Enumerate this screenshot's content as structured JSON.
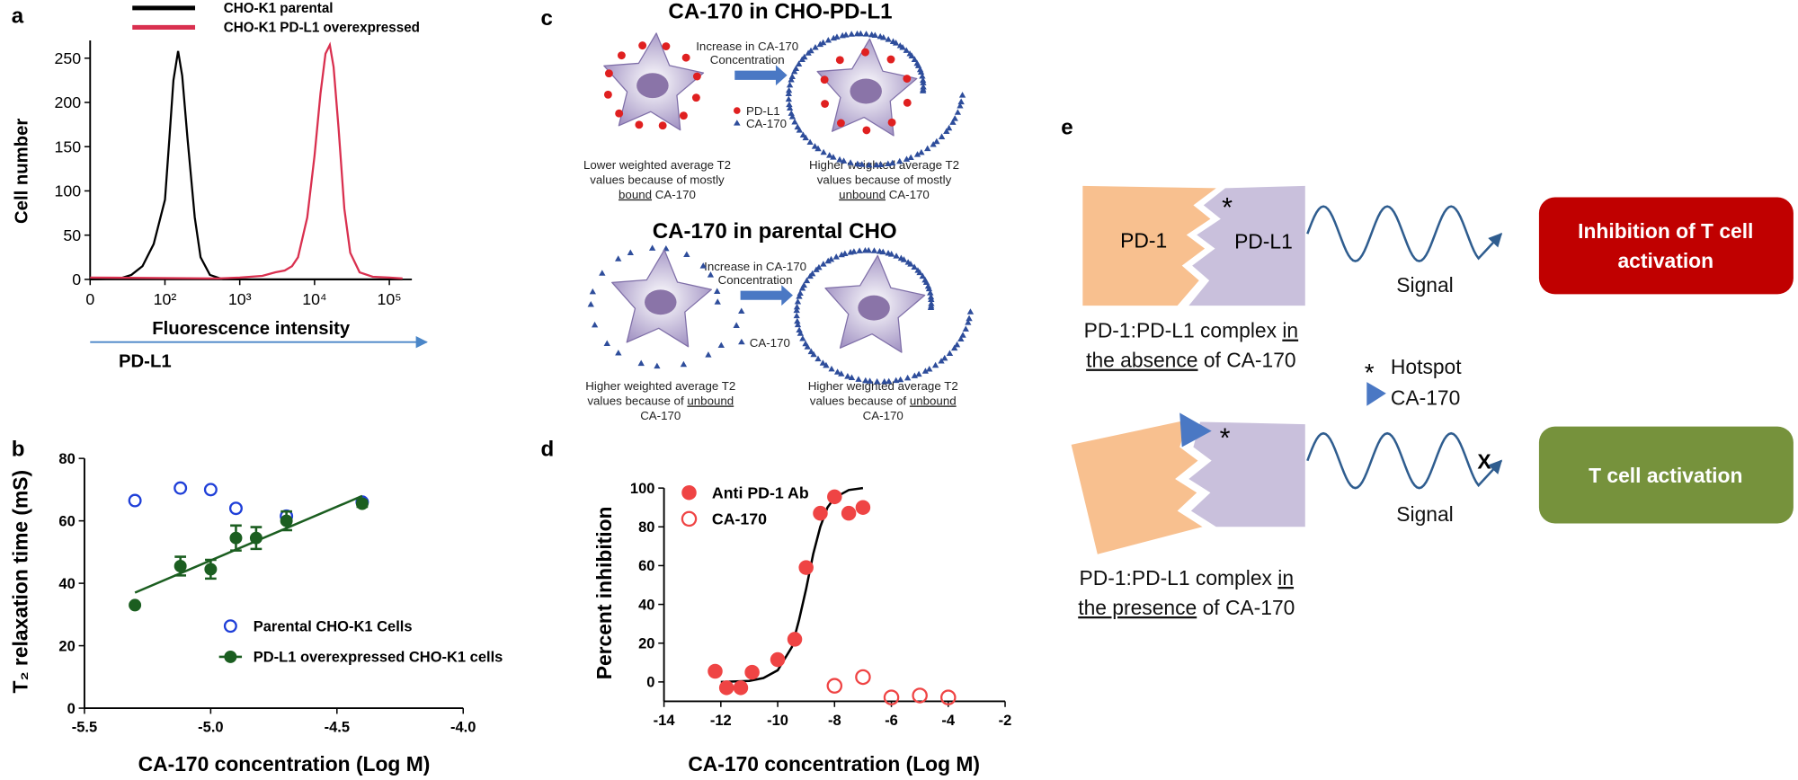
{
  "chart_data": [
    {
      "panel": "a",
      "type": "line",
      "xscale": "symlog",
      "xlabel": "Fluorescence intensity",
      "ylabel": "Cell number",
      "axis_note": "PD-L1",
      "xlim": [
        0,
        200000
      ],
      "ylim": [
        0,
        270
      ],
      "xticks": [
        0,
        {
          "value": 100,
          "label": "10²"
        },
        {
          "value": 1000,
          "label": "10³"
        },
        {
          "value": 10000,
          "label": "10⁴"
        },
        {
          "value": 100000,
          "label": "10⁵"
        }
      ],
      "yticks": [
        0,
        50,
        100,
        150,
        200,
        250
      ],
      "series": [
        {
          "name": "CHO-K1 parental",
          "color": "#000000",
          "x": [
            0,
            40,
            55,
            70,
            85,
            100,
            115,
            130,
            150,
            170,
            200,
            250,
            300,
            400,
            600,
            1000,
            10000,
            150000
          ],
          "values": [
            0,
            1,
            5,
            15,
            40,
            90,
            160,
            225,
            258,
            230,
            160,
            70,
            25,
            5,
            0,
            0,
            0,
            0
          ]
        },
        {
          "name": "CHO-K1 PD-L1 overexpressed",
          "color": "#d9304f",
          "x": [
            0,
            500,
            1000,
            2000,
            3000,
            4000,
            5000,
            6000,
            8000,
            10000,
            12000,
            14000,
            16000,
            18000,
            21000,
            25000,
            30000,
            40000,
            60000,
            100000,
            150000
          ],
          "values": [
            2,
            1,
            2,
            4,
            8,
            10,
            15,
            25,
            70,
            140,
            210,
            255,
            265,
            240,
            170,
            80,
            30,
            8,
            3,
            2,
            1
          ]
        }
      ]
    },
    {
      "panel": "b",
      "type": "scatter",
      "xlabel": "CA-170 concentration (Log M)",
      "ylabel": "T₂ relaxation time (mS)",
      "xlim": [
        -5.5,
        -4.0
      ],
      "ylim": [
        0,
        80
      ],
      "xticks": [
        -5.5,
        {
          "value": -5.0,
          "label": "-5.0"
        },
        -4.5,
        {
          "value": -4.0,
          "label": "-4.0"
        }
      ],
      "yticks": [
        0,
        20,
        40,
        60,
        80
      ],
      "series": [
        {
          "name": "Parental CHO-K1 Cells",
          "color": "#1f3fd8",
          "marker": "open",
          "x": [
            -5.3,
            -5.12,
            -5.0,
            -4.9,
            -4.7,
            -4.4
          ],
          "values": [
            66.5,
            70.5,
            70,
            64,
            61.5,
            66
          ]
        },
        {
          "name": "PD-L1 overexpressed CHO-K1 cells",
          "color": "#1b5e20",
          "marker": "filled",
          "x": [
            -5.3,
            -5.12,
            -5.0,
            -4.9,
            -4.82,
            -4.7,
            -4.4
          ],
          "values": [
            33,
            45.5,
            44.5,
            54.5,
            54.5,
            60,
            65.5
          ],
          "errors": [
            null,
            3,
            3,
            4,
            3.5,
            3,
            1
          ],
          "fit": {
            "x": [
              -5.3,
              -4.4
            ],
            "values": [
              37,
              68
            ]
          }
        }
      ]
    },
    {
      "panel": "d",
      "type": "scatter",
      "xlabel": "CA-170 concentration (Log M)",
      "ylabel": "Percent inhibition",
      "xlim": [
        -14,
        -2
      ],
      "ylim": [
        -10,
        100
      ],
      "xticks": [
        -14,
        -12,
        -10,
        -8,
        -6,
        -4,
        -2
      ],
      "yticks": [
        0,
        20,
        40,
        60,
        80,
        100
      ],
      "series": [
        {
          "name": "Anti PD-1 Ab",
          "color": "#ef4444",
          "marker": "filled",
          "x": [
            -12.2,
            -11.8,
            -11.3,
            -10.9,
            -10,
            -9.4,
            -9,
            -8.5,
            -8,
            -7.5,
            -7
          ],
          "values": [
            5.5,
            -3,
            -3,
            5,
            11.5,
            22,
            59,
            87,
            95.5,
            87,
            90
          ],
          "fit": {
            "x": [
              -12,
              -11,
              -10.5,
              -10,
              -9.5,
              -9.25,
              -9,
              -8.75,
              -8.5,
              -8.25,
              -8,
              -7.5,
              -7
            ],
            "values": [
              0,
              0.5,
              2,
              6,
              18,
              32,
              48,
              66,
              80,
              90,
              95,
              99,
              100
            ]
          }
        },
        {
          "name": "CA-170",
          "color": "#ef4444",
          "marker": "open",
          "x": [
            -8,
            -7,
            -6,
            -5,
            -4
          ],
          "values": [
            -2,
            2.5,
            -8,
            -7,
            -8
          ]
        }
      ]
    }
  ],
  "panel_c": {
    "label": "c",
    "top": {
      "title": "CA-170 in CHO-PD-L1",
      "arrow_text": [
        "Increase in CA-170",
        "Concentration"
      ],
      "legend": [
        "PD-L1",
        "CA-170"
      ],
      "left_caption": [
        "Lower weighted average T2",
        "values because of mostly",
        "bound",
        " CA-170"
      ],
      "right_caption": [
        "Higher weighted average T2",
        "values because of mostly",
        "unbound",
        " CA-170"
      ]
    },
    "bottom": {
      "title": "CA-170 in parental CHO",
      "arrow_text": [
        "Increase in CA-170",
        "Concentration"
      ],
      "legend": [
        "CA-170"
      ],
      "left_caption": [
        "Higher weighted average T2",
        "values because of ",
        "unbound",
        "CA-170"
      ],
      "right_caption": [
        "Higher weighted average T2",
        "values because of ",
        "unbound",
        "CA-170"
      ]
    }
  },
  "panel_e": {
    "label": "e",
    "pd1": "PD-1",
    "pdl1": "PD-L1",
    "hotspot_mark": "*",
    "signal": "Signal",
    "block": "X",
    "inhibition": [
      "Inhibition of T cell",
      "activation"
    ],
    "activation": "T cell activation",
    "absence_caption": [
      "PD-1:PD-L1 complex ",
      "in",
      "the absence",
      " of CA-170"
    ],
    "presence_caption": [
      "PD-1:PD-L1 complex ",
      "in",
      "the presence",
      " of CA-170"
    ],
    "legend": {
      "hotspot": "Hotspot",
      "ca170": "CA-170"
    }
  }
}
